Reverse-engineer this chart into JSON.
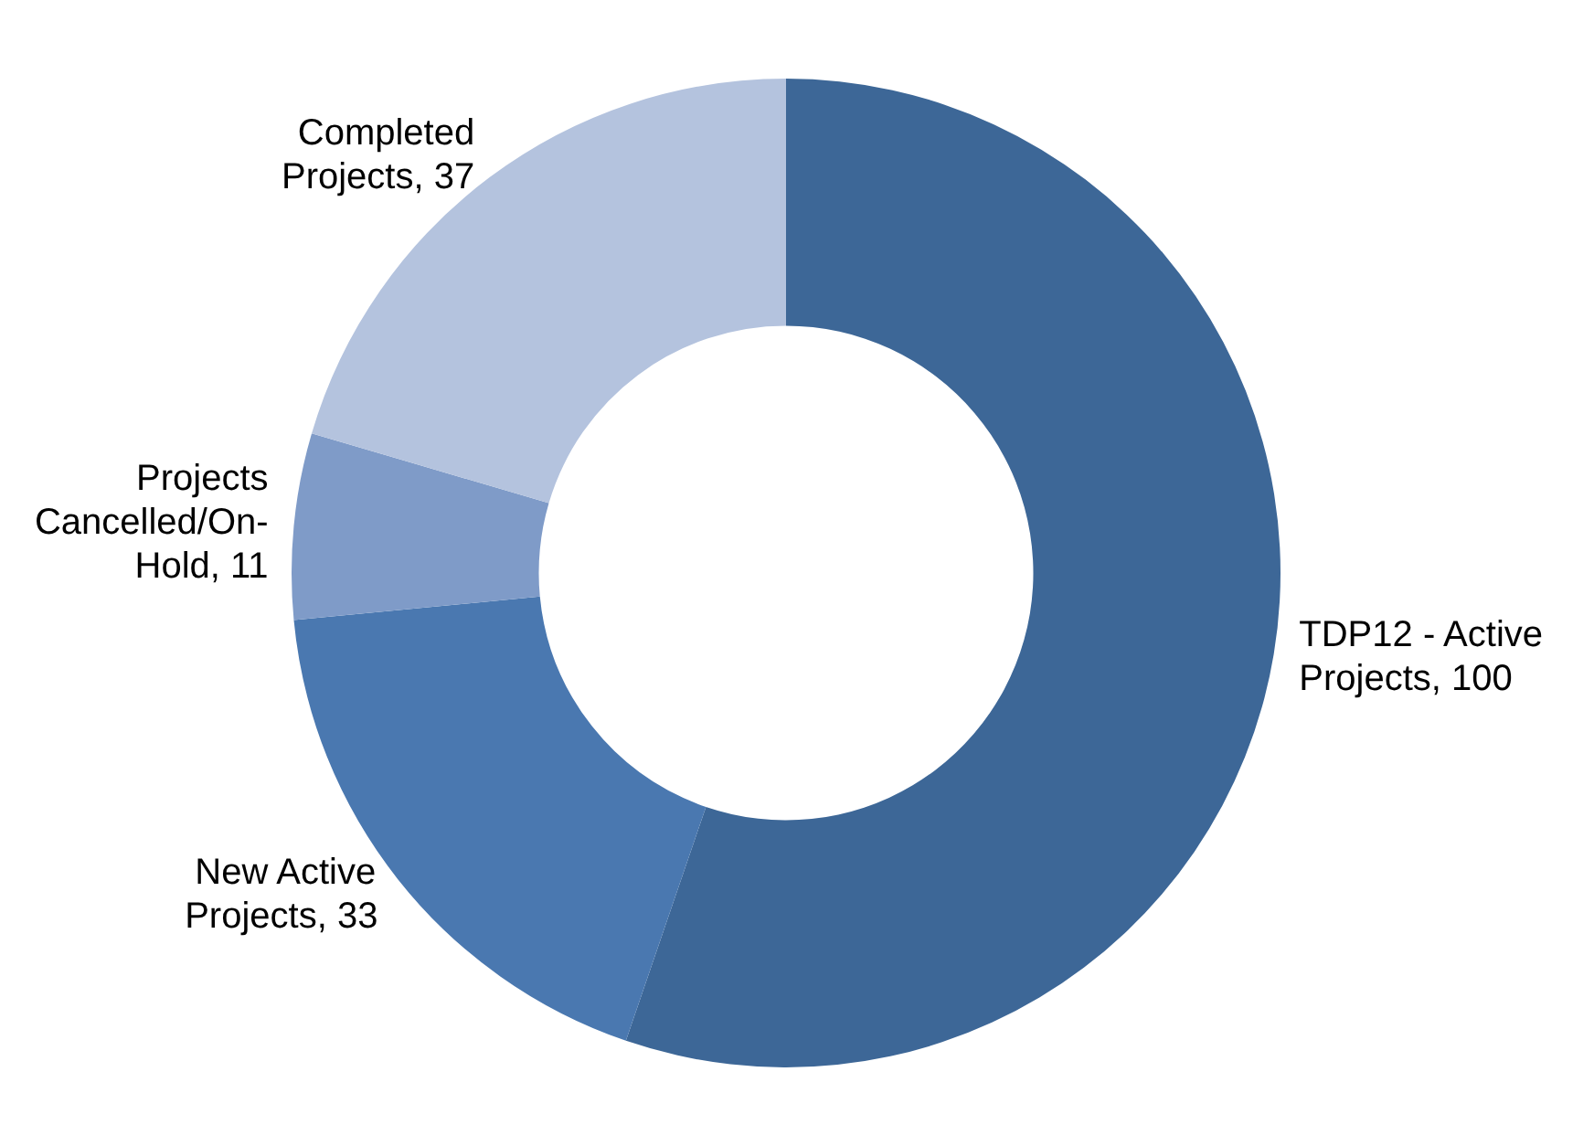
{
  "chart_data": {
    "type": "donut",
    "categories": [
      "TDP12 - Active Projects",
      "New Active Projects",
      "Projects Cancelled/On-Hold",
      "Completed Projects"
    ],
    "values": [
      100,
      33,
      11,
      37
    ],
    "colors": [
      "#3d6797",
      "#4a78b0",
      "#7f9bc8",
      "#b4c3de"
    ],
    "value_labels": [
      ", 100",
      ", 33",
      ", 11",
      ", 37"
    ],
    "legend": false
  }
}
